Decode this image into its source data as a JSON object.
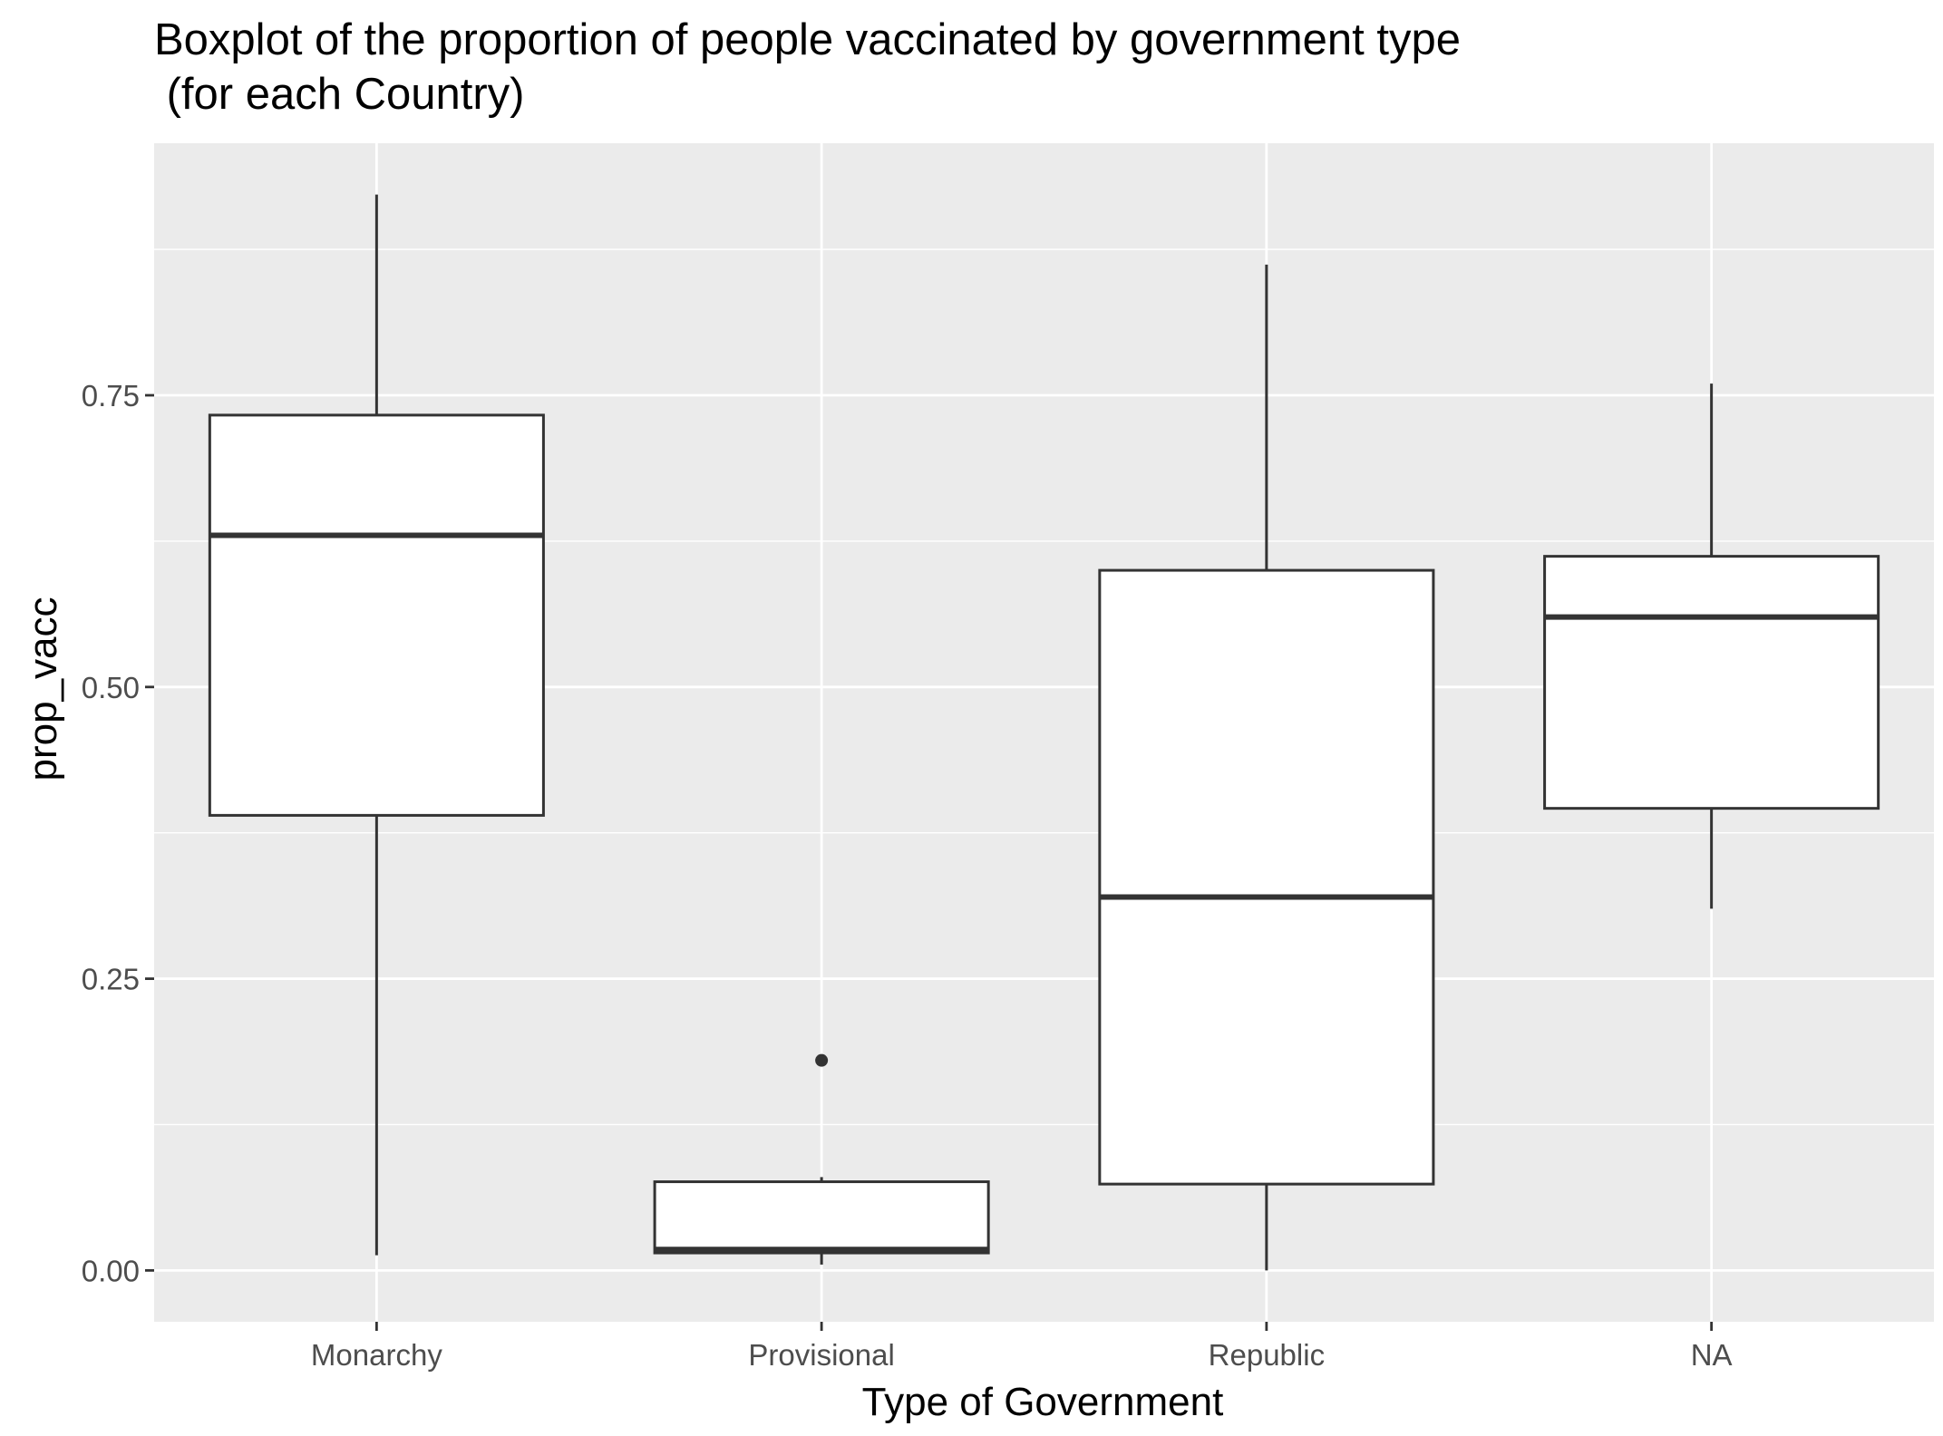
{
  "chart_data": {
    "type": "boxplot",
    "title_lines": [
      "Boxplot of the proportion of people vaccinated by government type",
      " (for each Country)"
    ],
    "xlabel": "Type of Government",
    "ylabel": "prop_vacc",
    "categories": [
      "Monarchy",
      "Provisional",
      "Republic",
      "NA"
    ],
    "boxes": [
      {
        "category": "Monarchy",
        "whisker_low": 0.013,
        "q1": 0.39,
        "median": 0.63,
        "q3": 0.733,
        "whisker_high": 0.922,
        "outliers": []
      },
      {
        "category": "Provisional",
        "whisker_low": 0.005,
        "q1": 0.015,
        "median": 0.018,
        "q3": 0.076,
        "whisker_high": 0.08,
        "outliers": [
          0.18
        ]
      },
      {
        "category": "Republic",
        "whisker_low": 0.0,
        "q1": 0.074,
        "median": 0.32,
        "q3": 0.6,
        "whisker_high": 0.862,
        "outliers": []
      },
      {
        "category": "NA",
        "whisker_low": 0.31,
        "q1": 0.396,
        "median": 0.56,
        "q3": 0.612,
        "whisker_high": 0.76,
        "outliers": []
      }
    ],
    "y_ticks": [
      0.0,
      0.25,
      0.5,
      0.75
    ],
    "y_tick_labels": [
      "0.00",
      "0.25",
      "0.50",
      "0.75"
    ],
    "ylim": [
      -0.044,
      0.966
    ],
    "grid": true,
    "colors": {
      "panel_background": "#ebebeb",
      "grid_major": "#ffffff",
      "box_fill": "#ffffff",
      "box_line": "#333333",
      "tick_text": "#4d4d4d"
    }
  }
}
